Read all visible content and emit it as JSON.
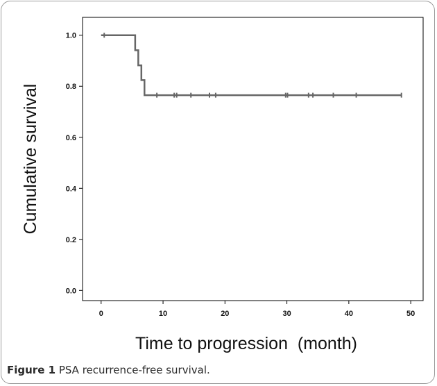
{
  "caption": {
    "label": "Figure 1",
    "text": "PSA recurrence-free survival."
  },
  "chart_data": {
    "type": "line",
    "step": true,
    "xlabel": "Time to progression  (month)",
    "ylabel": "Cumulative survival",
    "xlim": [
      -3,
      52
    ],
    "ylim": [
      -0.04,
      1.07
    ],
    "xticks": [
      0,
      10,
      20,
      30,
      40,
      50
    ],
    "yticks": [
      0.0,
      0.2,
      0.4,
      0.6,
      0.8,
      1.0
    ],
    "xtick_labels": [
      "0",
      "10",
      "20",
      "30",
      "40",
      "50"
    ],
    "ytick_labels": [
      "0.0",
      "0.2",
      "0.4",
      "0.6",
      "0.8",
      "1.0"
    ],
    "grid": false,
    "legend": "none",
    "line_color": "#666666",
    "series": [
      {
        "steps": [
          [
            0,
            1.0
          ],
          [
            5.5,
            0.941
          ],
          [
            6.0,
            0.882
          ],
          [
            6.5,
            0.824
          ],
          [
            7.0,
            0.765
          ],
          [
            48.5,
            0.765
          ]
        ],
        "censored": [
          [
            0.5,
            1.0
          ],
          [
            9.0,
            0.765
          ],
          [
            11.8,
            0.765
          ],
          [
            12.2,
            0.765
          ],
          [
            14.5,
            0.765
          ],
          [
            17.5,
            0.765
          ],
          [
            18.5,
            0.765
          ],
          [
            29.8,
            0.765
          ],
          [
            30.1,
            0.765
          ],
          [
            33.5,
            0.765
          ],
          [
            34.2,
            0.765
          ],
          [
            37.5,
            0.765
          ],
          [
            41.2,
            0.765
          ],
          [
            48.5,
            0.765
          ]
        ]
      }
    ]
  }
}
